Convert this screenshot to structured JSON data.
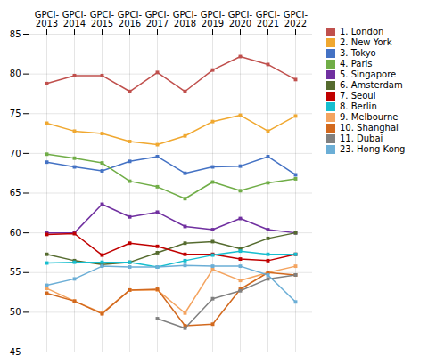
{
  "chart_data": {
    "type": "line",
    "categories": [
      "GPCI-\n2013",
      "GPCI-\n2014",
      "GPCI-\n2015",
      "GPCI-\n2016",
      "GPCI-\n2017",
      "GPCI-\n2018",
      "GPCI-\n2019",
      "GPCI-\n2020",
      "GPCI-\n2021",
      "GPCI-\n2022"
    ],
    "series": [
      {
        "name": "1. London",
        "color": "#c0504d",
        "values": [
          78.8,
          79.8,
          79.8,
          77.8,
          80.2,
          77.8,
          80.5,
          82.2,
          81.2,
          79.3
        ]
      },
      {
        "name": "2. New York",
        "color": "#f0a830",
        "values": [
          73.8,
          72.8,
          72.5,
          71.5,
          71.1,
          72.2,
          74.0,
          74.8,
          72.8,
          74.7
        ]
      },
      {
        "name": "3. Tokyo",
        "color": "#4472c4",
        "values": [
          68.9,
          68.3,
          67.8,
          69.0,
          69.6,
          67.5,
          68.3,
          68.4,
          69.6,
          67.3
        ]
      },
      {
        "name": "4. Paris",
        "color": "#70ad47",
        "values": [
          69.9,
          69.4,
          68.8,
          66.5,
          65.8,
          64.3,
          66.4,
          65.3,
          66.3,
          66.8
        ]
      },
      {
        "name": "5. Singapore",
        "color": "#7030a0",
        "values": [
          60.0,
          60.0,
          63.6,
          62.0,
          62.6,
          60.8,
          60.4,
          61.8,
          60.4,
          60.0
        ]
      },
      {
        "name": "6. Amsterdam",
        "color": "#556b2f",
        "values": [
          57.3,
          56.5,
          56.0,
          56.3,
          57.5,
          58.7,
          58.9,
          58.0,
          59.3,
          60.0
        ]
      },
      {
        "name": "7. Seoul",
        "color": "#c00000",
        "values": [
          59.8,
          59.9,
          57.2,
          58.7,
          58.3,
          57.3,
          57.3,
          56.7,
          56.5,
          57.3
        ]
      },
      {
        "name": "8. Berlin",
        "color": "#17becf",
        "values": [
          56.2,
          56.3,
          56.3,
          56.3,
          55.7,
          56.5,
          57.2,
          57.7,
          57.3,
          57.3
        ]
      },
      {
        "name": "9. Melbourne",
        "color": "#f4a460",
        "values": [
          53.0,
          51.4,
          49.9,
          52.8,
          52.8,
          49.9,
          55.4,
          54.0,
          55.0,
          55.8
        ]
      },
      {
        "name": "10. Shanghai",
        "color": "#d2691e",
        "values": [
          52.4,
          51.4,
          49.8,
          52.8,
          52.9,
          48.3,
          48.5,
          52.9,
          55.0,
          54.7
        ]
      },
      {
        "name": "11. Dubai",
        "color": "#808080",
        "values": [
          null,
          null,
          null,
          null,
          49.2,
          48.0,
          51.7,
          52.7,
          54.2,
          54.7
        ]
      },
      {
        "name": "23. Hong Kong",
        "color": "#6baed6",
        "values": [
          53.4,
          54.2,
          55.8,
          55.7,
          55.7,
          55.9,
          55.8,
          55.8,
          54.7,
          51.3
        ]
      }
    ],
    "ylim": [
      45,
      85
    ],
    "yticks": [
      45,
      50,
      55,
      60,
      65,
      70,
      75,
      80,
      85
    ],
    "grid": true,
    "legend": "right",
    "marker": "square"
  }
}
